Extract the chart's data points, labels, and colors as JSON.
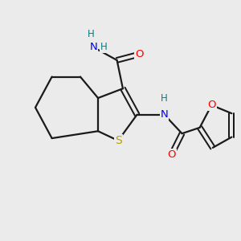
{
  "background_color": "#ebebeb",
  "bond_color": "#1a1a1a",
  "atom_colors": {
    "N": "#0000ff",
    "O": "#ff0000",
    "S": "#b8a000",
    "H": "#008080",
    "C": "#1a1a1a"
  },
  "figsize": [
    3.0,
    3.0
  ],
  "dpi": 100,
  "lw": 1.6,
  "fs": 9.5
}
